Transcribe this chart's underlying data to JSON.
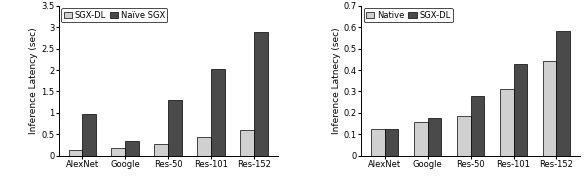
{
  "categories": [
    "AlexNet",
    "Google",
    "Res-50",
    "Res-101",
    "Res-152"
  ],
  "left_chart": {
    "ylabel": "Inference Latency (sec)",
    "ylim": [
      0,
      3.5
    ],
    "yticks": [
      0,
      0.5,
      1.0,
      1.5,
      2.0,
      2.5,
      3.0,
      3.5
    ],
    "ytick_labels": [
      "0",
      "0.5",
      "1",
      "1.5",
      "2",
      "2.5",
      "3",
      "3.5"
    ],
    "sgx_dl": [
      0.13,
      0.18,
      0.28,
      0.43,
      0.6
    ],
    "naive_sgx": [
      0.97,
      0.34,
      1.3,
      2.03,
      2.88
    ],
    "color_sgx_dl": "#d0d0d0",
    "color_naive_sgx": "#4a4a4a",
    "legend_labels": [
      "SGX-DL",
      "Naïve SGX"
    ]
  },
  "right_chart": {
    "ylabel": "Inference Latnecy (sec)",
    "ylim": [
      0,
      0.7
    ],
    "yticks": [
      0,
      0.1,
      0.2,
      0.3,
      0.4,
      0.5,
      0.6,
      0.7
    ],
    "ytick_labels": [
      "0",
      "0.1",
      "0.2",
      "0.3",
      "0.4",
      "0.5",
      "0.6",
      "0.7"
    ],
    "native": [
      0.123,
      0.157,
      0.185,
      0.31,
      0.44
    ],
    "sgx_dl": [
      0.123,
      0.176,
      0.277,
      0.43,
      0.583
    ],
    "color_native": "#d0d0d0",
    "color_sgx_dl": "#4a4a4a",
    "legend_labels": [
      "Native",
      "SGX-DL"
    ]
  },
  "bar_width": 0.32,
  "fontsize": 6.5,
  "ylabel_fontsize": 6.5,
  "legend_fontsize": 6,
  "tick_fontsize": 6
}
